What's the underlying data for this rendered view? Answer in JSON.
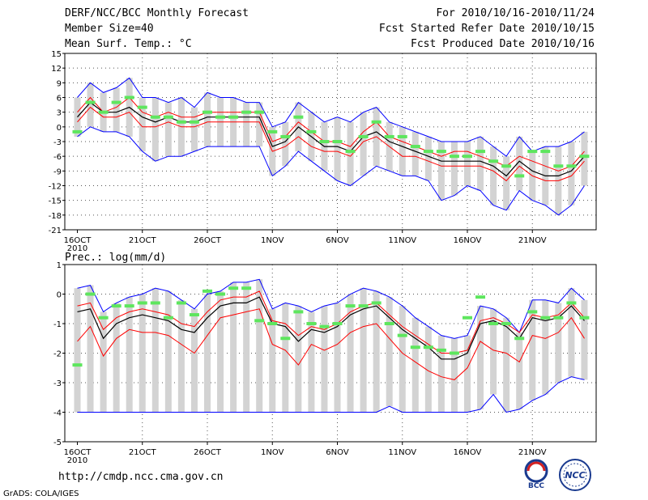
{
  "header": {
    "title": "DERF/NCC/BCC Monthly Forecast",
    "member_size": "Member Size=40",
    "variable_temp": "Mean Surf. Temp.: °C",
    "forecast_range": "For 2010/10/16-2010/11/24",
    "started_refer": "Fcst Started Refer Date 2010/10/15",
    "produced": "Fcst Produced Date 2010/10/16"
  },
  "footer": {
    "url": "http://cmdp.ncc.cma.gov.cn",
    "grads": "GrADS: COLA/IGES",
    "logo_left": "BCC",
    "logo_right": "NCC"
  },
  "colors": {
    "box": "#d3d3d3",
    "median": "#000000",
    "sd": "#ff0000",
    "extreme": "#0000ff",
    "obs": "#5ee65e",
    "grid": "#555555"
  },
  "chart_data": [
    {
      "type": "box-ensemble",
      "title": "Mean Surf. Temp.: °C",
      "x_tick_labels": [
        "16OCT",
        "21OCT",
        "26OCT",
        "1NOV",
        "6NOV",
        "11NOV",
        "16NOV",
        "21NOV"
      ],
      "year_label": "2010",
      "ylim": [
        -21,
        15
      ],
      "yticks": [
        -21,
        -18,
        -15,
        -12,
        -9,
        -6,
        -3,
        0,
        3,
        6,
        9,
        12,
        15
      ],
      "days": 40,
      "series": [
        {
          "name": "ensemble_max",
          "values": [
            6,
            9,
            7,
            8,
            10,
            6,
            6,
            5,
            6,
            4,
            7,
            6,
            6,
            5,
            5,
            0,
            1,
            5,
            3,
            1,
            2,
            1,
            3,
            4,
            1,
            0,
            -1,
            -2,
            -3,
            -3,
            -3,
            -2,
            -4,
            -6,
            -2,
            -5,
            -4,
            -4,
            -3,
            -1
          ]
        },
        {
          "name": "sd_upper",
          "values": [
            3,
            6,
            3,
            4,
            6,
            3,
            2,
            3,
            2,
            2,
            3,
            3,
            3,
            3,
            3,
            -3,
            -2,
            1,
            -1,
            -3,
            -3,
            -4,
            -1,
            1,
            -2,
            -3,
            -4,
            -5,
            -6,
            -5,
            -5,
            -6,
            -7,
            -8,
            -6,
            -7,
            -8,
            -9,
            -8,
            -5
          ]
        },
        {
          "name": "median",
          "values": [
            2,
            5,
            3,
            3,
            4,
            2,
            1,
            2,
            1,
            1,
            2,
            2,
            2,
            2,
            2,
            -4,
            -3,
            0,
            -2,
            -4,
            -4,
            -5,
            -2,
            -1,
            -3,
            -4,
            -5,
            -6,
            -7,
            -7,
            -7,
            -7,
            -8,
            -10,
            -7,
            -9,
            -10,
            -10,
            -9,
            -6
          ]
        },
        {
          "name": "sd_lower",
          "values": [
            1,
            4,
            2,
            2,
            3,
            0,
            0,
            1,
            0,
            0,
            1,
            1,
            1,
            1,
            1,
            -5,
            -4,
            -2,
            -4,
            -5,
            -5,
            -6,
            -3,
            -2,
            -4,
            -6,
            -6,
            -7,
            -8,
            -8,
            -8,
            -8,
            -9,
            -11,
            -8,
            -10,
            -11,
            -11,
            -10,
            -7
          ]
        },
        {
          "name": "ensemble_min",
          "values": [
            -2,
            0,
            -1,
            -1,
            -2,
            -5,
            -7,
            -6,
            -6,
            -5,
            -4,
            -4,
            -4,
            -4,
            -4,
            -10,
            -8,
            -5,
            -7,
            -9,
            -11,
            -12,
            -10,
            -8,
            -9,
            -10,
            -10,
            -11,
            -15,
            -14,
            -12,
            -13,
            -16,
            -17,
            -13,
            -15,
            -16,
            -18,
            -16,
            -12
          ]
        },
        {
          "name": "obs",
          "values": [
            -1,
            5,
            3,
            5,
            6,
            4,
            2,
            2,
            1,
            1,
            3,
            2,
            2,
            3,
            3,
            -1,
            -2,
            2,
            -1,
            -3,
            -3,
            -5,
            -2,
            1,
            -2,
            -2,
            -4,
            -5,
            -5,
            -6,
            -6,
            -5,
            -7,
            -8,
            -10,
            -5,
            -5,
            -8,
            -8,
            -6
          ]
        }
      ]
    },
    {
      "type": "box-ensemble",
      "title": "Prec.: log(mm/d)",
      "x_tick_labels": [
        "16OCT",
        "21OCT",
        "26OCT",
        "1NOV",
        "6NOV",
        "11NOV",
        "16NOV",
        "21NOV"
      ],
      "year_label": "2010",
      "ylim": [
        -5,
        1
      ],
      "yticks": [
        -5,
        -4,
        -3,
        -2,
        -1,
        0,
        1
      ],
      "days": 40,
      "series": [
        {
          "name": "ensemble_max",
          "values": [
            0.2,
            0.3,
            -0.6,
            -0.3,
            -0.1,
            0,
            0.2,
            0.1,
            -0.2,
            -0.5,
            0,
            0.1,
            0.4,
            0.4,
            0.5,
            -0.5,
            -0.3,
            -0.4,
            -0.6,
            -0.4,
            -0.3,
            0,
            0.2,
            0.1,
            -0.1,
            -0.4,
            -0.8,
            -1.1,
            -1.4,
            -1.5,
            -1.4,
            -0.4,
            -0.5,
            -0.8,
            -1.3,
            -0.2,
            -0.2,
            -0.3,
            0.2,
            -0.2
          ]
        },
        {
          "name": "sd_upper",
          "values": [
            -0.4,
            -0.3,
            -1.2,
            -0.8,
            -0.6,
            -0.5,
            -0.6,
            -0.7,
            -1,
            -1.1,
            -0.6,
            -0.2,
            -0.1,
            -0.1,
            0.1,
            -0.9,
            -1,
            -1.4,
            -1.1,
            -1.2,
            -1,
            -0.6,
            -0.4,
            -0.3,
            -0.7,
            -1.1,
            -1.4,
            -1.7,
            -2,
            -2,
            -1.9,
            -0.9,
            -0.8,
            -1,
            -1.3,
            -0.7,
            -0.8,
            -0.7,
            -0.3,
            -0.8
          ]
        },
        {
          "name": "median",
          "values": [
            -0.6,
            -0.5,
            -1.5,
            -1,
            -0.8,
            -0.7,
            -0.8,
            -0.9,
            -1.2,
            -1.3,
            -0.8,
            -0.4,
            -0.3,
            -0.3,
            -0.1,
            -1,
            -1.1,
            -1.6,
            -1.2,
            -1.3,
            -1.1,
            -0.7,
            -0.5,
            -0.4,
            -0.8,
            -1.2,
            -1.5,
            -1.8,
            -2.2,
            -2.2,
            -2,
            -1,
            -0.9,
            -1.1,
            -1.5,
            -0.8,
            -0.9,
            -0.8,
            -0.4,
            -0.9
          ]
        },
        {
          "name": "sd_lower",
          "values": [
            -1.6,
            -1.1,
            -2.1,
            -1.5,
            -1.2,
            -1.3,
            -1.3,
            -1.4,
            -1.7,
            -2,
            -1.4,
            -0.8,
            -0.7,
            -0.6,
            -0.5,
            -1.7,
            -1.9,
            -2.4,
            -1.7,
            -1.9,
            -1.7,
            -1.3,
            -1.1,
            -1,
            -1.5,
            -2,
            -2.3,
            -2.6,
            -2.8,
            -2.9,
            -2.5,
            -1.6,
            -1.9,
            -2,
            -2.3,
            -1.4,
            -1.5,
            -1.3,
            -0.8,
            -1.5
          ]
        },
        {
          "name": "ensemble_min",
          "values": [
            -4,
            -4,
            -4,
            -4,
            -4,
            -4,
            -4,
            -4,
            -4,
            -4,
            -4,
            -4,
            -4,
            -4,
            -4,
            -4,
            -4,
            -4,
            -4,
            -4,
            -4,
            -4,
            -4,
            -4,
            -3.8,
            -4,
            -4,
            -4,
            -4,
            -4,
            -4,
            -3.9,
            -3.4,
            -4,
            -3.9,
            -3.6,
            -3.4,
            -3,
            -2.8,
            -2.9
          ]
        },
        {
          "name": "obs",
          "values": [
            -2.4,
            0,
            -0.8,
            -0.4,
            -0.4,
            -0.3,
            -0.3,
            -0.8,
            -0.3,
            -0.7,
            0.1,
            0,
            0.2,
            0.2,
            -0.9,
            -1,
            -1.5,
            -0.6,
            -1,
            -1.1,
            -1,
            -0.4,
            -0.4,
            -0.3,
            -1,
            -1.4,
            -1.8,
            -1.8,
            -1.9,
            -2,
            -0.8,
            -0.1,
            -1,
            -1,
            -1.5,
            -0.6,
            -0.8,
            -0.8,
            -0.3,
            -0.8
          ]
        }
      ]
    }
  ]
}
